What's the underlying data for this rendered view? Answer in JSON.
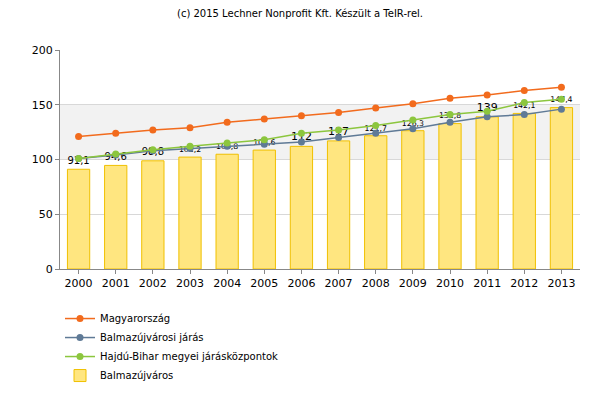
{
  "chart_data": {
    "type": "bar",
    "title": "(c) 2015 Lechner Nonprofit Kft. Készült a TeIR-rel.",
    "categories": [
      "2000",
      "2001",
      "2002",
      "2003",
      "2004",
      "2005",
      "2006",
      "2007",
      "2008",
      "2009",
      "2010",
      "2011",
      "2012",
      "2013"
    ],
    "series": [
      {
        "name": "Magyarország",
        "type": "line",
        "marker": "circle",
        "color": "#f26b1d",
        "values": [
          121,
          124,
          127,
          129,
          134,
          137,
          140,
          143,
          147,
          151,
          156,
          159,
          163,
          166
        ]
      },
      {
        "name": "Balmazújvárosi járás",
        "type": "line",
        "marker": "circle",
        "color": "#5f7a96",
        "values": [
          101,
          104,
          108,
          110,
          112,
          114,
          116,
          120,
          124,
          128,
          134,
          139,
          141,
          146
        ]
      },
      {
        "name": "Hajdú-Bihar megyei járásközpontok",
        "type": "line",
        "marker": "circle",
        "color": "#8cc63e",
        "values": [
          101,
          105,
          109,
          112,
          115,
          118,
          124,
          127,
          131,
          136,
          141,
          144,
          152,
          155
        ]
      },
      {
        "name": "Balmazújváros",
        "type": "bar",
        "color": "#ffe680",
        "values": [
          91.1,
          94.6,
          98.8,
          102.2,
          104.8,
          108.6,
          112,
          117,
          121.7,
          126.3,
          132.8,
          139,
          142.1,
          147.4
        ],
        "value_labels": [
          "91,1",
          "94,6",
          "98,8",
          "102,2",
          "104,8",
          "108,6",
          "112",
          "117",
          "121,7",
          "126,3",
          "132,8",
          "139",
          "142,1",
          "147,4"
        ]
      }
    ],
    "ylim": [
      0,
      200
    ],
    "yticks": [
      0,
      50,
      100,
      150,
      200
    ],
    "grid": true,
    "legend": "bottom",
    "data_labels": true
  }
}
